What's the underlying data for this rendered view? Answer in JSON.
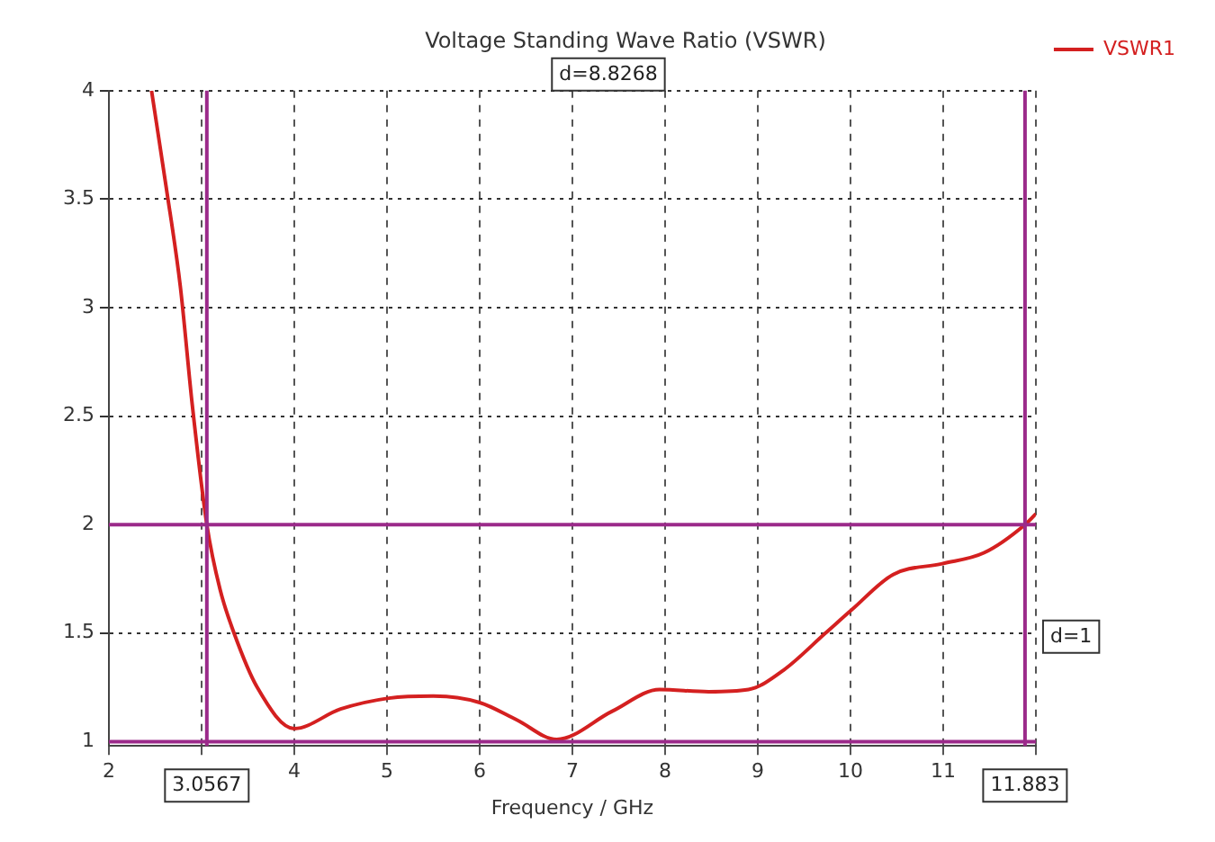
{
  "chart_data": {
    "type": "line",
    "title": "Voltage Standing Wave Ratio (VSWR)",
    "xlabel": "Frequency / GHz",
    "x": [
      2.46,
      2.62,
      2.77,
      2.9,
      3.0567,
      3.2,
      3.35,
      3.6,
      4.0,
      4.5,
      5.02,
      5.5,
      6.0,
      6.4,
      6.83,
      7.43,
      7.94,
      8.47,
      8.9,
      9.28,
      9.73,
      10.02,
      10.46,
      10.99,
      11.44,
      11.883,
      12.0
    ],
    "series": [
      {
        "name": "VSWR1",
        "color": "#d42020",
        "values": [
          4,
          3.55,
          3.1,
          2.55,
          2.0,
          1.7,
          1.5,
          1.25,
          1.06,
          1.15,
          1.2,
          1.21,
          1.18,
          1.1,
          1.01,
          1.14,
          1.24,
          1.23,
          1.24,
          1.33,
          1.5,
          1.61,
          1.77,
          1.82,
          1.87,
          2.0,
          2.05
        ]
      }
    ],
    "xlim": [
      2,
      12
    ],
    "ylim": [
      0.98,
      4
    ],
    "xticks": [
      2,
      {
        "value": 3,
        "label": null
      },
      4,
      5,
      6,
      7,
      8,
      9,
      10,
      11,
      {
        "value": 12,
        "label": null
      }
    ],
    "yticks": [
      1,
      1.5,
      2,
      2.5,
      3,
      3.5,
      4
    ],
    "grid": true,
    "legend": "top right",
    "marker": "none",
    "line_style": "solid",
    "ref_lines": [
      {
        "axis": "x",
        "value": 3.0567,
        "label": "3.0567",
        "color": "#9b2a8a"
      },
      {
        "axis": "x",
        "value": 11.883,
        "label": "11.883",
        "color": "#9b2a8a"
      },
      {
        "axis": "y",
        "value": 2,
        "color": "#9b2a8a"
      },
      {
        "axis": "y",
        "value": 1,
        "color": "#9b2a8a"
      }
    ],
    "annotations": [
      "d=8.8268",
      "d=1"
    ]
  }
}
